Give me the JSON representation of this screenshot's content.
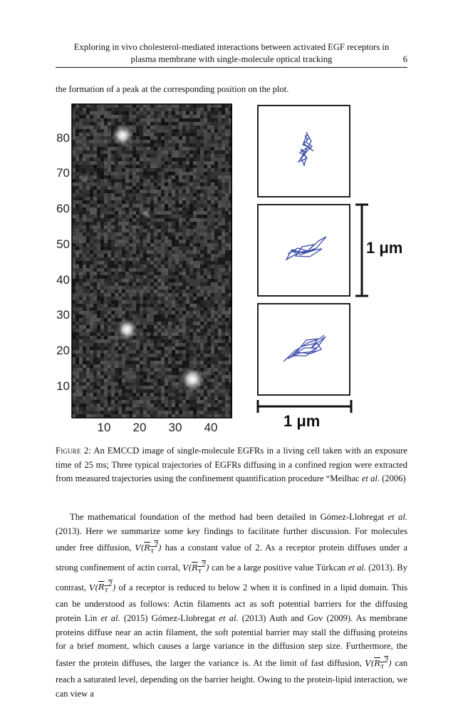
{
  "header": {
    "line1": "Exploring in vivo cholesterol-mediated interactions between activated EGF receptors in",
    "line2": "plasma membrane with single-molecule optical tracking",
    "page_number": "6"
  },
  "intro_line": "the formation of a peak at the corresponding position on the plot.",
  "figure": {
    "y_ticks": [
      "80",
      "70",
      "60",
      "50",
      "40",
      "30",
      "20",
      "10"
    ],
    "x_ticks": [
      "10",
      "20",
      "30",
      "40"
    ],
    "scale_label_vertical": "1 μm",
    "scale_label_horizontal": "1 μm",
    "trajectory_color": "#3a4aa8"
  },
  "caption": {
    "label": "Figure 2:",
    "text": "An EMCCD image of single-molecule EGFRs in a living cell taken with an exposure time of 25 ms; Three typical trajectories of EGFRs diffusing in a confined region were extracted from measured trajectories using the confinement quantification procedure “Meilhac ",
    "et_al": "et al.",
    "year": " (2006)"
  },
  "body": {
    "s1": "The mathematical foundation of the method had been detailed in Gómez-Llobregat ",
    "s1_etal": "et al.",
    "s2": " (2013). Here we summarize some key findings to facilitate further discussion. For molecules under free diffusion, ",
    "s3": " has a constant value of 2. As a receptor protein diffuses under a strong confinement of actin corral, ",
    "s4": " can be a large positive value Türkcan ",
    "s4_etal": "et al.",
    "s5": " (2013). By contrast, ",
    "s6": " of a receptor is reduced to below 2 when it is confined in a lipid domain. This can be understood as follows: Actin filaments act as soft potential barriers for the diffusing protein Lin ",
    "s6_etal": "et al.",
    "s7": " (2015) Gómez-Llobregat ",
    "s7_etal": "et al.",
    "s8": " (2013) Auth and Gov (2009). As membrane proteins diffuse near an actin filament, the soft potential barrier may stall the diffusing proteins for a brief moment, which causes a large variance in the diffusion step size. Furthermore, the faster the protein diffuses, the larger the variance is. At the limit of fast diffusion, ",
    "s9": " can reach a saturated level, depending on the barrier height. Owing to the protein-lipid interaction, we can view a",
    "math_V": "V",
    "math_R": "R",
    "math_tau": "τ",
    "math_sq": "2"
  }
}
